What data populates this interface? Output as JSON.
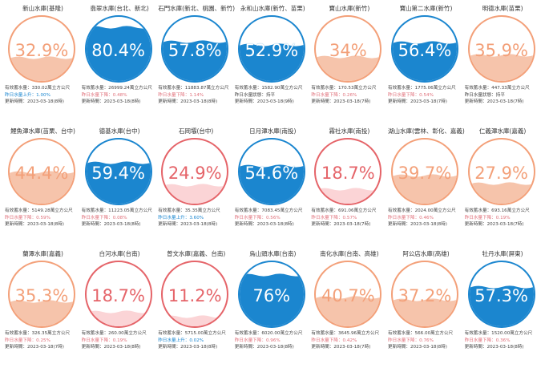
{
  "labels": {
    "capacity_prefix": "有效蓄水量："
  },
  "colors": {
    "orange": "#f3a079",
    "orange_fill": "#f6c4ab",
    "blue": "#1b86cf",
    "blue_fill": "#1b86cf",
    "red": "#e56469",
    "red_fill": "#fbd4d6"
  },
  "reservoirs": [
    {
      "name": "新山水庫(基隆)",
      "percent_text": "32.9%",
      "level": 0.329,
      "theme": "orange",
      "capacity": "330.02萬立方公尺",
      "trend": "昨日水量上升：1.00%",
      "trend_dir": "up",
      "updated": "更新時間：2023-03-18(8時)"
    },
    {
      "name": "翡翠水庫(台北、新北)",
      "percent_text": "80.4%",
      "level": 0.804,
      "theme": "blue",
      "capacity": "26999.24萬立方公尺",
      "trend": "昨日水量下降：0.48%",
      "trend_dir": "down",
      "updated": "更新時間：2023-03-18(8時)"
    },
    {
      "name": "石門水庫(新北、桃園、新竹)",
      "percent_text": "57.8%",
      "level": 0.578,
      "theme": "blue",
      "capacity": "11883.87萬立方公尺",
      "trend": "昨日水量下降：1.14%",
      "trend_dir": "down",
      "updated": "更新時間：2023-03-18(8時)"
    },
    {
      "name": "永和山水庫(新竹、苗栗)",
      "percent_text": "52.9%",
      "level": 0.529,
      "theme": "blue",
      "capacity": "1582.90萬立方公尺",
      "trend": "昨日水量狀態：持平",
      "trend_dir": "none",
      "updated": "更新時間：2023-03-18(9時)"
    },
    {
      "name": "寶山水庫(新竹)",
      "percent_text": "34%",
      "level": 0.34,
      "theme": "orange",
      "capacity": "170.53萬立方公尺",
      "trend": "昨日水量下降：0.26%",
      "trend_dir": "down",
      "updated": "更新時間：2023-03-18(7時)"
    },
    {
      "name": "寶山第二水庫(新竹)",
      "percent_text": "56.4%",
      "level": 0.564,
      "theme": "blue",
      "capacity": "1775.06萬立方公尺",
      "trend": "昨日水量下降：0.54%",
      "trend_dir": "down",
      "updated": "更新時間：2023-03-18(7時)"
    },
    {
      "name": "明德水庫(苗栗)",
      "percent_text": "35.9%",
      "level": 0.359,
      "theme": "orange",
      "capacity": "447.33萬立方公尺",
      "trend": "昨日水量狀態：持平",
      "trend_dir": "none",
      "updated": "更新時間：2023-03-18(7時)"
    },
    {
      "name": "鯉魚潭水庫(苗栗、台中)",
      "percent_text": "44.4%",
      "level": 0.444,
      "theme": "orange",
      "capacity": "5149.28萬立方公尺",
      "trend": "昨日水量下降：0.59%",
      "trend_dir": "down",
      "updated": "更新時間：2023-03-18(8時)"
    },
    {
      "name": "德基水庫(台中)",
      "percent_text": "59.4%",
      "level": 0.594,
      "theme": "blue",
      "capacity": "11223.05萬立方公尺",
      "trend": "昨日水量下降：0.08%",
      "trend_dir": "down",
      "updated": "更新時間：2023-03-18(8時)"
    },
    {
      "name": "石岡壩(台中)",
      "percent_text": "24.9%",
      "level": 0.249,
      "theme": "red",
      "capacity": "35.35萬立方公尺",
      "trend": "昨日水量上升：3.60%",
      "trend_dir": "up",
      "updated": "更新時間：2023-03-18(8時)"
    },
    {
      "name": "日月潭水庫(南投)",
      "percent_text": "54.6%",
      "level": 0.546,
      "theme": "blue",
      "capacity": "7083.45萬立方公尺",
      "trend": "昨日水量下降：0.56%",
      "trend_dir": "down",
      "updated": "更新時間：2023-03-18(8時)"
    },
    {
      "name": "霧社水庫(南投)",
      "percent_text": "18.7%",
      "level": 0.187,
      "theme": "red",
      "capacity": "691.06萬立方公尺",
      "trend": "昨日水量下降：0.57%",
      "trend_dir": "down",
      "updated": "更新時間：2023-03-18(7時)"
    },
    {
      "name": "湖山水庫(雲林、彰化、嘉義)",
      "percent_text": "39.7%",
      "level": 0.397,
      "theme": "orange",
      "capacity": "2024.00萬立方公尺",
      "trend": "昨日水量下降：0.46%",
      "trend_dir": "down",
      "updated": "更新時間：2023-03-18(8時)"
    },
    {
      "name": "仁義潭水庫(嘉義)",
      "percent_text": "27.9%",
      "level": 0.279,
      "theme": "orange",
      "capacity": "693.16萬立方公尺",
      "trend": "昨日水量下降：0.19%",
      "trend_dir": "down",
      "updated": "更新時間：2023-03-18(7時)"
    },
    {
      "name": "蘭潭水庫(嘉義)",
      "percent_text": "35.3%",
      "level": 0.353,
      "theme": "orange",
      "capacity": "326.35萬立方公尺",
      "trend": "昨日水量下降：0.25%",
      "trend_dir": "down",
      "updated": "更新時間：2023-03-18(7時)"
    },
    {
      "name": "白河水庫(台南)",
      "percent_text": "18.7%",
      "level": 0.187,
      "theme": "red",
      "capacity": "260.00萬立方公尺",
      "trend": "昨日水量下降：0.19%",
      "trend_dir": "down",
      "updated": "更新時間：2023-03-18(8時)"
    },
    {
      "name": "曾文水庫(嘉義、台南)",
      "percent_text": "11.2%",
      "level": 0.112,
      "theme": "red",
      "capacity": "5715.00萬立方公尺",
      "trend": "昨日水量上升：0.02%",
      "trend_dir": "up",
      "updated": "更新時間：2023-03-18(8時)"
    },
    {
      "name": "烏山頭水庫(台南)",
      "percent_text": "76%",
      "level": 0.76,
      "theme": "blue",
      "capacity": "6020.00萬立方公尺",
      "trend": "昨日水量下降：0.96%",
      "trend_dir": "down",
      "updated": "更新時間：2023-03-18(8時)"
    },
    {
      "name": "南化水庫(台南、高雄)",
      "percent_text": "40.7%",
      "level": 0.407,
      "theme": "orange",
      "capacity": "3645.96萬立方公尺",
      "trend": "昨日水量下降：0.42%",
      "trend_dir": "down",
      "updated": "更新時間：2023-03-18(7時)"
    },
    {
      "name": "阿公店水庫(高雄)",
      "percent_text": "37.2%",
      "level": 0.372,
      "theme": "orange",
      "capacity": "566.00萬立方公尺",
      "trend": "昨日水量下降：0.76%",
      "trend_dir": "down",
      "updated": "更新時間：2023-03-18(8時)"
    },
    {
      "name": "牡丹水庫(屏東)",
      "percent_text": "57.3%",
      "level": 0.573,
      "theme": "blue",
      "capacity": "1520.00萬立方公尺",
      "trend": "昨日水量下降：0.36%",
      "trend_dir": "down",
      "updated": "更新時間：2023-03-18(8時)"
    }
  ]
}
